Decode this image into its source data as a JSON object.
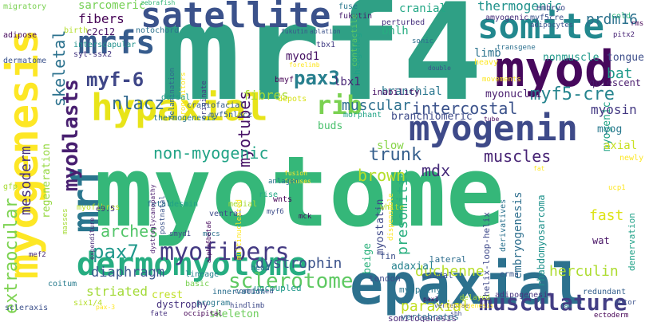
{
  "words": [
    {
      "text": "mrf4",
      "color": "#2fa085"
    },
    {
      "text": "myotome",
      "color": "#35b779"
    },
    {
      "text": "epaxial",
      "color": "#2c718e"
    },
    {
      "text": "myod",
      "color": "#46085c"
    },
    {
      "text": "satellite",
      "color": "#3b528b"
    },
    {
      "text": "hypaxial",
      "color": "#e8e419"
    },
    {
      "text": "myogenin",
      "color": "#3e4a89"
    },
    {
      "text": "somite",
      "color": "#22888e"
    },
    {
      "text": "dermomyotome",
      "color": "#26ad81"
    },
    {
      "text": "musculature",
      "color": "#433e85"
    },
    {
      "text": "myogenesis",
      "color": "#fde725"
    },
    {
      "text": "mrfs",
      "color": "#365c8d"
    },
    {
      "text": "myf-6",
      "color": "#3f4788"
    },
    {
      "text": "pax3",
      "color": "#277f8e"
    },
    {
      "text": "rib",
      "color": "#7ad151"
    },
    {
      "text": "nlacz",
      "color": "#31688e"
    },
    {
      "text": "myofibers",
      "color": "#443a83"
    },
    {
      "text": "sclerotome",
      "color": "#5ec962"
    },
    {
      "text": "mrf",
      "color": "#2a768e"
    },
    {
      "text": "myoblasts",
      "color": "#481f70"
    },
    {
      "text": "non-myogenic",
      "color": "#20a386"
    },
    {
      "text": "myotubes",
      "color": "#481467"
    },
    {
      "text": "trunk",
      "color": "#355f8d"
    },
    {
      "text": "mdx",
      "color": "#472c7a"
    },
    {
      "text": "brown",
      "color": "#b5de2b"
    },
    {
      "text": "muscular",
      "color": "#2d708e"
    },
    {
      "text": "intercostal",
      "color": "#3b528b"
    },
    {
      "text": "myf5-cre",
      "color": "#25848e"
    },
    {
      "text": "muscles",
      "color": "#482475"
    },
    {
      "text": "pax7",
      "color": "#1f988b"
    },
    {
      "text": "diaphragm",
      "color": "#39568c"
    },
    {
      "text": "dystrophin",
      "color": "#3b528b"
    },
    {
      "text": "arches",
      "color": "#52c569"
    },
    {
      "text": "duchenne",
      "color": "#b8de29"
    },
    {
      "text": "paraxial",
      "color": "#c2df23"
    },
    {
      "text": "herculin",
      "color": "#addc30"
    },
    {
      "text": "striated",
      "color": "#a2da37"
    },
    {
      "text": "skeletal",
      "color": "#2c728e"
    },
    {
      "text": "extraocular",
      "color": "#7cd250"
    },
    {
      "text": "mesoderm",
      "color": "#46307e"
    },
    {
      "text": "thermogenic",
      "color": "#20928c"
    },
    {
      "text": "prdm16",
      "color": "#2c728e"
    },
    {
      "text": "bat",
      "color": "#1f9a8a"
    },
    {
      "text": "myosin",
      "color": "#443983"
    },
    {
      "text": "fibres",
      "color": "#a8db34"
    },
    {
      "text": "presomitic",
      "color": "#29af7f"
    },
    {
      "text": "sarcomeric",
      "color": "#75d054"
    },
    {
      "text": "fibers",
      "color": "#440154"
    },
    {
      "text": "limb",
      "color": "#2c738e"
    },
    {
      "text": "fast",
      "color": "#dde318"
    },
    {
      "text": "myostatin",
      "color": "#3e4989"
    },
    {
      "text": "adaxial",
      "color": "#26828e"
    },
    {
      "text": "branchiomeric",
      "color": "#3e4a89"
    },
    {
      "text": "tongue",
      "color": "#3d4e8a"
    },
    {
      "text": "nonmuscle",
      "color": "#1f998a"
    },
    {
      "text": "myonuclei",
      "color": "#481c6e"
    },
    {
      "text": "lbx1",
      "color": "#482576"
    },
    {
      "text": "myod1",
      "color": "#471365"
    },
    {
      "text": "cranial",
      "color": "#22a785"
    },
    {
      "text": "branchial",
      "color": "#2a768e"
    },
    {
      "text": "beige",
      "color": "#2db27d"
    },
    {
      "text": "slow",
      "color": "#87d549"
    },
    {
      "text": "regeneration",
      "color": "#95d840"
    },
    {
      "text": "embryogenesis",
      "color": "#2e6f8e"
    },
    {
      "text": "rhabdomyosarcoma",
      "color": "#20928c"
    },
    {
      "text": "dystrophy",
      "color": "#46327e"
    },
    {
      "text": "skeleton",
      "color": "#6ccd5a"
    },
    {
      "text": "c2c12",
      "color": "#471164"
    },
    {
      "text": "myogenic",
      "color": "#20a386"
    },
    {
      "text": "axial",
      "color": "#c8e020"
    },
    {
      "text": "myog",
      "color": "#29798e"
    },
    {
      "text": "bhlh",
      "color": "#27ad81"
    },
    {
      "text": "quiescent",
      "color": "#481a6c"
    },
    {
      "text": "buds",
      "color": "#4ac16d"
    },
    {
      "text": "crest",
      "color": "#c0df25"
    },
    {
      "text": "myopathy",
      "color": "#2a778e"
    },
    {
      "text": "uncoupled",
      "color": "#1f978b"
    },
    {
      "text": "fin",
      "color": "#3c4f8a"
    },
    {
      "text": "lateral",
      "color": "#2e6e8e"
    },
    {
      "text": "caudal",
      "color": "#3a548c"
    },
    {
      "text": "tendon",
      "color": "#3d4d8a"
    },
    {
      "text": "somitogenesis",
      "color": "#482878"
    },
    {
      "text": "vertebrates",
      "color": "#2f6c8e"
    },
    {
      "text": "hedgehog",
      "color": "#1fa187"
    },
    {
      "text": "inability",
      "color": "#471063"
    },
    {
      "text": "scleraxis",
      "color": "#3c508b"
    },
    {
      "text": "embryo",
      "color": "#3f4889"
    },
    {
      "text": "amyogenic",
      "color": "#472d7b"
    },
    {
      "text": "myf5cre",
      "color": "#3b518b"
    },
    {
      "text": "migratory",
      "color": "#7ad151"
    },
    {
      "text": "adipose",
      "color": "#46085c"
    },
    {
      "text": "birth",
      "color": "#b5de2b"
    },
    {
      "text": "notochord",
      "color": "#2c718e"
    },
    {
      "text": "moxl",
      "color": "#3b528b"
    },
    {
      "text": "fuse",
      "color": "#2a788e"
    },
    {
      "text": "fukutin",
      "color": "#481e6f"
    },
    {
      "text": "perturbed",
      "color": "#46307e"
    },
    {
      "text": "zebrafish",
      "color": "#35b779"
    },
    {
      "text": "cold",
      "color": "#2fb47c"
    },
    {
      "text": "pitx2",
      "color": "#482475"
    },
    {
      "text": "interscapular",
      "color": "#21918c"
    },
    {
      "text": "syt-ssx2",
      "color": "#453781"
    },
    {
      "text": "tbx1",
      "color": "#433e85"
    },
    {
      "text": "contractile",
      "color": "#5ec962"
    },
    {
      "text": "sonic",
      "color": "#2e6f8e"
    },
    {
      "text": "transgene",
      "color": "#2d708e"
    },
    {
      "text": "heavy",
      "color": "#fde725"
    },
    {
      "text": "adipocytes",
      "color": "#3a548c"
    },
    {
      "text": "delamination",
      "color": "#31688e"
    },
    {
      "text": "progenitors",
      "color": "#fde725"
    },
    {
      "text": "originate",
      "color": "#433e85"
    },
    {
      "text": "bmyf",
      "color": "#440154"
    },
    {
      "text": "craniofacial",
      "color": "#365c8d"
    },
    {
      "text": "myf5nlacz",
      "color": "#35608d"
    },
    {
      "text": "thermogenesis",
      "color": "#2a768e"
    },
    {
      "text": "depots",
      "color": "#d8e219"
    },
    {
      "text": "morphant",
      "color": "#20a486"
    },
    {
      "text": "dorsal",
      "color": "#1e9c89"
    },
    {
      "text": "myofibres",
      "color": "#b8de29"
    },
    {
      "text": "e9.5",
      "color": "#46307e"
    },
    {
      "text": "fetal",
      "color": "#2c728e"
    },
    {
      "text": "desmin",
      "color": "#1fa187"
    },
    {
      "text": "masses",
      "color": "#a5db36"
    },
    {
      "text": "ventral",
      "color": "#3e4a89"
    },
    {
      "text": "medial",
      "color": "#a8db34"
    },
    {
      "text": "wnts",
      "color": "#440154"
    },
    {
      "text": "rise",
      "color": "#22a785"
    },
    {
      "text": "myf6",
      "color": "#3d4d8a"
    },
    {
      "text": "mck",
      "color": "#46085c"
    },
    {
      "text": "mpcs",
      "color": "#2c718e"
    },
    {
      "text": "postnatal",
      "color": "#3b528b"
    },
    {
      "text": "multinucleated",
      "color": "#fde725"
    },
    {
      "text": "smyd1",
      "color": "#3f4788"
    },
    {
      "text": "dystroglycanopathy",
      "color": "#481a6c"
    },
    {
      "text": "alpha6beta6",
      "color": "#46085c"
    },
    {
      "text": "committed",
      "color": "#3b528b"
    },
    {
      "text": "head",
      "color": "#2c718e"
    },
    {
      "text": "lineage",
      "color": "#25848e"
    },
    {
      "text": "basic",
      "color": "#7ad151"
    },
    {
      "text": "coitum",
      "color": "#287c8e"
    },
    {
      "text": "mef2",
      "color": "#482878"
    },
    {
      "text": "six1/4",
      "color": "#b5de2b"
    },
    {
      "text": "expenditure",
      "color": "#472c7a"
    },
    {
      "text": "innervation",
      "color": "#2d708e"
    },
    {
      "text": "program",
      "color": "#2a788e"
    },
    {
      "text": "fate",
      "color": "#46307e"
    },
    {
      "text": "hindlimb",
      "color": "#3e4a89"
    },
    {
      "text": "occipital",
      "color": "#440154"
    },
    {
      "text": "gfp",
      "color": "#a8db34"
    },
    {
      "text": "dermatome",
      "color": "#3b528b"
    },
    {
      "text": "white",
      "color": "#addc30"
    },
    {
      "text": "erms",
      "color": "#39568c"
    },
    {
      "text": "derivatives",
      "color": "#2c728e"
    },
    {
      "text": "helix-loop-helix",
      "color": "#3e4989"
    },
    {
      "text": "wat",
      "color": "#471365"
    },
    {
      "text": "newly",
      "color": "#fde725"
    },
    {
      "text": "denervation",
      "color": "#35608d"
    },
    {
      "text": "redundant",
      "color": "#46337f"
    },
    {
      "text": "adipogenesis",
      "color": "#1fa187"
    },
    {
      "text": "ectoderm",
      "color": "#440154"
    },
    {
      "text": "rms",
      "color": "#440154"
    },
    {
      "text": "ucp1",
      "color": "#fde725"
    },
    {
      "text": "dispensable",
      "color": "#fde725"
    },
    {
      "text": "moxl",
      "color": "#46307e"
    },
    {
      "text": "fukutin",
      "color": "#481f70"
    },
    {
      "text": "ablation",
      "color": "#3b528b"
    },
    {
      "text": "double",
      "color": "#3b528b"
    },
    {
      "text": "shh",
      "color": "#3b528b"
    },
    {
      "text": "vertebrae",
      "color": "#3e4a89"
    },
    {
      "text": "pax1",
      "color": "#3e4a89"
    },
    {
      "text": "delayed",
      "color": "#471063"
    },
    {
      "text": "jaw",
      "color": "#addc30"
    },
    {
      "text": "motor",
      "color": "#25848e"
    },
    {
      "text": "fat",
      "color": "#3b528b"
    },
    {
      "text": "fusion",
      "color": "#fde725"
    },
    {
      "text": "fetuses",
      "color": "#fde725"
    },
    {
      "text": "anlagen",
      "color": "#fde725"
    },
    {
      "text": "tube",
      "color": "#2c728e"
    },
    {
      "text": "forelimb",
      "color": "#46085c"
    },
    {
      "text": "pax-3",
      "color": "#fde725"
    },
    {
      "text": "morphogenesis",
      "color": "#fde725"
    },
    {
      "text": "movements",
      "color": "#fde725"
    },
    {
      "text": "chick",
      "color": "#fde725"
    },
    {
      "text": "demox",
      "color": "#fde725"
    }
  ]
}
